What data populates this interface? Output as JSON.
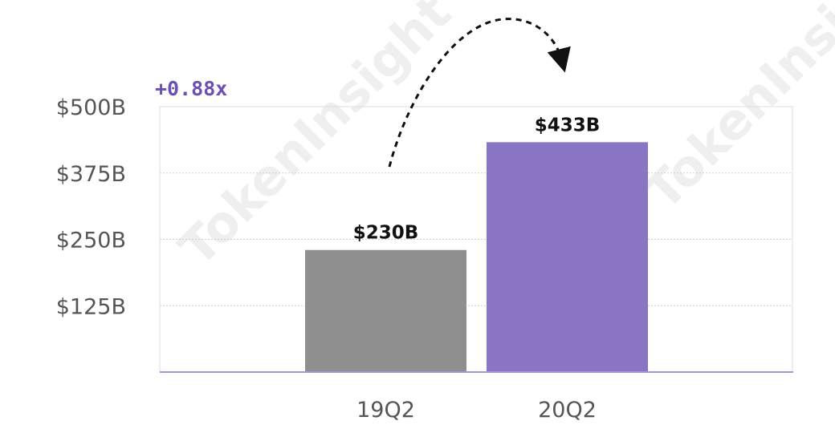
{
  "chart_data": {
    "type": "bar",
    "categories": [
      "19Q2",
      "20Q2"
    ],
    "values": [
      230,
      433
    ],
    "value_labels": [
      "$230B",
      "$433B"
    ],
    "bar_colors": [
      "#8f8f8f",
      "#8a75c4"
    ],
    "ylim": [
      0,
      500
    ],
    "yticks": [
      {
        "value": 125,
        "label": "$125B"
      },
      {
        "value": 250,
        "label": "$250B"
      },
      {
        "value": 375,
        "label": "$375B"
      },
      {
        "value": 500,
        "label": "$500B"
      }
    ],
    "grid": true,
    "annotation": {
      "text": "+0.88x",
      "color": "#6a4fb5"
    },
    "title": "",
    "xlabel": "",
    "ylabel": ""
  },
  "watermark": {
    "text": "TokenInsight"
  }
}
